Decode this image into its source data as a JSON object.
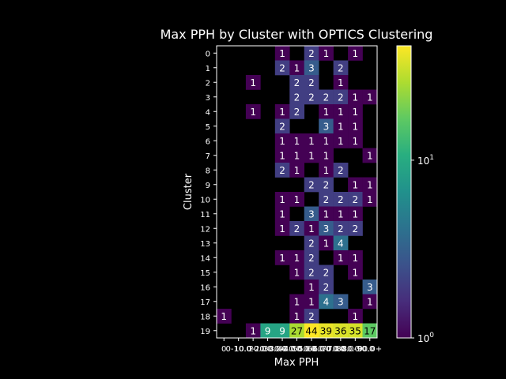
{
  "chart_data": {
    "type": "heatmap",
    "title": "Max PPH by Cluster with OPTICS Clustering",
    "xlabel": "Max PPH",
    "ylabel": "Cluster",
    "x_categories": [
      "0",
      "0-10.0",
      "10.0-20.0",
      "20.0-30.0",
      "30.0-40.0",
      "40.0-50.0",
      "50.0-60.0",
      "60.0-70.0",
      "70.0-80.0",
      "80.0-90.0",
      "90.0+"
    ],
    "y_categories": [
      "0",
      "1",
      "2",
      "3",
      "4",
      "5",
      "6",
      "7",
      "8",
      "9",
      "10",
      "11",
      "12",
      "13",
      "14",
      "15",
      "16",
      "17",
      "18",
      "19"
    ],
    "values": [
      [
        null,
        null,
        null,
        null,
        1,
        null,
        2,
        1,
        null,
        1,
        null
      ],
      [
        null,
        null,
        null,
        null,
        2,
        1,
        3,
        null,
        2,
        null,
        null
      ],
      [
        null,
        null,
        1,
        null,
        null,
        2,
        2,
        null,
        1,
        null,
        null
      ],
      [
        null,
        null,
        null,
        null,
        null,
        2,
        2,
        2,
        2,
        1,
        1
      ],
      [
        null,
        null,
        1,
        null,
        1,
        2,
        null,
        1,
        1,
        1,
        null
      ],
      [
        null,
        null,
        null,
        null,
        2,
        null,
        null,
        3,
        1,
        1,
        null
      ],
      [
        null,
        null,
        null,
        null,
        1,
        1,
        1,
        1,
        1,
        1,
        null
      ],
      [
        null,
        null,
        null,
        null,
        1,
        1,
        1,
        1,
        null,
        null,
        1
      ],
      [
        null,
        null,
        null,
        null,
        2,
        1,
        null,
        1,
        2,
        null,
        null
      ],
      [
        null,
        null,
        null,
        null,
        null,
        null,
        2,
        2,
        null,
        1,
        1
      ],
      [
        null,
        null,
        null,
        null,
        1,
        1,
        null,
        2,
        2,
        2,
        1
      ],
      [
        null,
        null,
        null,
        null,
        1,
        null,
        3,
        1,
        1,
        1,
        null
      ],
      [
        null,
        null,
        null,
        null,
        1,
        2,
        1,
        3,
        2,
        2,
        null
      ],
      [
        null,
        null,
        null,
        null,
        null,
        null,
        2,
        1,
        4,
        null,
        null
      ],
      [
        null,
        null,
        null,
        null,
        1,
        1,
        2,
        null,
        1,
        1,
        null
      ],
      [
        null,
        null,
        null,
        null,
        null,
        1,
        2,
        2,
        null,
        1,
        null
      ],
      [
        null,
        null,
        null,
        null,
        null,
        null,
        1,
        2,
        null,
        null,
        3
      ],
      [
        null,
        null,
        null,
        null,
        null,
        1,
        1,
        4,
        3,
        null,
        1
      ],
      [
        1,
        null,
        null,
        null,
        null,
        1,
        2,
        null,
        null,
        1,
        null
      ],
      [
        null,
        null,
        1,
        9,
        9,
        27,
        44,
        39,
        36,
        35,
        17
      ]
    ],
    "colorbar": {
      "scale": "log",
      "range": [
        1,
        44
      ],
      "ticks": [
        {
          "value": 1,
          "label": "10",
          "exp": "0"
        },
        {
          "value": 10,
          "label": "10",
          "exp": "1"
        }
      ],
      "colormap": "viridis"
    }
  }
}
